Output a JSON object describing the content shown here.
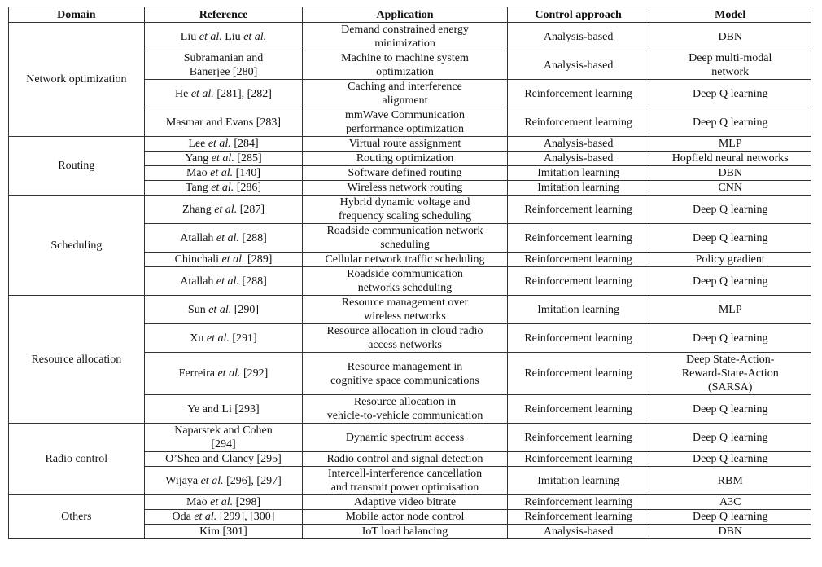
{
  "headers": [
    "Domain",
    "Reference",
    "Application",
    "Control approach",
    "Model"
  ],
  "groups": [
    {
      "domain": "Network optimization",
      "rows": [
        {
          "ref": [
            {
              "t": "Liu "
            },
            {
              "t": "et al.",
              "i": true
            },
            {
              "t": " Liu "
            },
            {
              "t": "et al.",
              "i": true
            }
          ],
          "app": [
            "Demand constrained energy",
            "minimization"
          ],
          "ctrl": "Analysis-based",
          "model": [
            "DBN"
          ],
          "h": 2
        },
        {
          "ref": [
            {
              "t": "Subramanian and"
            },
            {
              "br": true
            },
            {
              "t": "Banerjee [280]"
            }
          ],
          "app": [
            "Machine to machine system",
            "optimization"
          ],
          "ctrl": "Analysis-based",
          "model": [
            "Deep multi-modal",
            "network"
          ],
          "h": 2
        },
        {
          "ref": [
            {
              "t": "He "
            },
            {
              "t": "et al.",
              "i": true
            },
            {
              "t": " [281], [282]"
            }
          ],
          "app": [
            "Caching and interference",
            "alignment"
          ],
          "ctrl": "Reinforcement learning",
          "model": [
            "Deep Q learning"
          ],
          "h": 2
        },
        {
          "ref": [
            {
              "t": "Masmar and Evans [283]"
            }
          ],
          "app": [
            "mmWave Communication",
            "performance optimization"
          ],
          "ctrl": "Reinforcement learning",
          "model": [
            "Deep Q learning"
          ],
          "h": 2
        }
      ]
    },
    {
      "domain": "Routing",
      "rows": [
        {
          "ref": [
            {
              "t": "Lee "
            },
            {
              "t": "et al.",
              "i": true
            },
            {
              "t": " [284]"
            }
          ],
          "app": [
            "Virtual route assignment"
          ],
          "ctrl": "Analysis-based",
          "model": [
            "MLP"
          ],
          "h": 1
        },
        {
          "ref": [
            {
              "t": "Yang "
            },
            {
              "t": "et al.",
              "i": true
            },
            {
              "t": " [285]"
            }
          ],
          "app": [
            "Routing optimization"
          ],
          "ctrl": "Analysis-based",
          "model": [
            "Hopfield neural networks"
          ],
          "h": 1
        },
        {
          "ref": [
            {
              "t": "Mao "
            },
            {
              "t": "et al.",
              "i": true
            },
            {
              "t": " [140]"
            }
          ],
          "app": [
            "Software defined routing"
          ],
          "ctrl": "Imitation learning",
          "model": [
            "DBN"
          ],
          "h": 1
        },
        {
          "ref": [
            {
              "t": "Tang "
            },
            {
              "t": "et al.",
              "i": true
            },
            {
              "t": " [286]"
            }
          ],
          "app": [
            "Wireless network routing"
          ],
          "ctrl": "Imitation learning",
          "model": [
            "CNN"
          ],
          "h": 1
        }
      ]
    },
    {
      "domain": "Scheduling",
      "rows": [
        {
          "ref": [
            {
              "t": "Zhang "
            },
            {
              "t": "et al.",
              "i": true
            },
            {
              "t": " [287]"
            }
          ],
          "app": [
            "Hybrid dynamic voltage and",
            "frequency scaling scheduling"
          ],
          "ctrl": "Reinforcement learning",
          "model": [
            "Deep Q learning"
          ],
          "h": 2
        },
        {
          "ref": [
            {
              "t": "Atallah "
            },
            {
              "t": "et al.",
              "i": true
            },
            {
              "t": " [288]"
            }
          ],
          "app": [
            "Roadside communication network",
            "scheduling"
          ],
          "ctrl": "Reinforcement learning",
          "model": [
            "Deep Q learning"
          ],
          "h": 2
        },
        {
          "ref": [
            {
              "t": "Chinchali "
            },
            {
              "t": "et al.",
              "i": true
            },
            {
              "t": " [289]"
            }
          ],
          "app": [
            "Cellular network traffic scheduling"
          ],
          "ctrl": "Reinforcement learning",
          "model": [
            "Policy gradient"
          ],
          "h": 1
        },
        {
          "ref": [
            {
              "t": "Atallah "
            },
            {
              "t": "et al.",
              "i": true
            },
            {
              "t": " [288]"
            }
          ],
          "app": [
            "Roadside communication",
            "networks scheduling"
          ],
          "ctrl": "Reinforcement learning",
          "model": [
            "Deep Q learning"
          ],
          "h": 2
        }
      ]
    },
    {
      "domain": "Resource allocation",
      "rows": [
        {
          "ref": [
            {
              "t": "Sun "
            },
            {
              "t": "et al.",
              "i": true
            },
            {
              "t": " [290]"
            }
          ],
          "app": [
            "Resource management over",
            "wireless networks"
          ],
          "ctrl": "Imitation learning",
          "model": [
            "MLP"
          ],
          "h": 2
        },
        {
          "ref": [
            {
              "t": "Xu "
            },
            {
              "t": "et al.",
              "i": true
            },
            {
              "t": " [291]"
            }
          ],
          "app": [
            "Resource allocation in cloud radio",
            "access networks"
          ],
          "ctrl": "Reinforcement learning",
          "model": [
            "Deep Q learning"
          ],
          "h": 2
        },
        {
          "ref": [
            {
              "t": "Ferreira "
            },
            {
              "t": "et al.",
              "i": true
            },
            {
              "t": " [292]"
            }
          ],
          "app": [
            "Resource management in",
            "cognitive space communications"
          ],
          "ctrl": "Reinforcement learning",
          "model": [
            "Deep State-Action-",
            "Reward-State-Action",
            "(SARSA)"
          ],
          "h": 3
        },
        {
          "ref": [
            {
              "t": "Ye and Li [293]"
            }
          ],
          "app": [
            "Resource allocation in",
            "vehicle-to-vehicle communication"
          ],
          "ctrl": "Reinforcement learning",
          "model": [
            "Deep Q learning"
          ],
          "h": 2
        }
      ]
    },
    {
      "domain": "Radio control",
      "rows": [
        {
          "ref": [
            {
              "t": "Naparstek and Cohen"
            },
            {
              "br": true
            },
            {
              "t": "[294]"
            }
          ],
          "app": [
            "Dynamic spectrum access"
          ],
          "ctrl": "Reinforcement learning",
          "model": [
            "Deep Q learning"
          ],
          "h": 2
        },
        {
          "ref": [
            {
              "t": "O’Shea and Clancy [295]"
            }
          ],
          "app": [
            "Radio control and signal detection"
          ],
          "ctrl": "Reinforcement learning",
          "model": [
            "Deep Q learning"
          ],
          "h": 1
        },
        {
          "ref": [
            {
              "t": "Wijaya "
            },
            {
              "t": "et al.",
              "i": true
            },
            {
              "t": " [296], [297]"
            }
          ],
          "app": [
            "Intercell-interference cancellation",
            "and transmit power optimisation"
          ],
          "ctrl": "Imitation learning",
          "model": [
            "RBM"
          ],
          "h": 2
        }
      ]
    },
    {
      "domain": "Others",
      "rows": [
        {
          "ref": [
            {
              "t": "Mao "
            },
            {
              "t": "et al.",
              "i": true
            },
            {
              "t": " [298]"
            }
          ],
          "app": [
            "Adaptive video bitrate"
          ],
          "ctrl": "Reinforcement learning",
          "model": [
            "A3C"
          ],
          "h": 1
        },
        {
          "ref": [
            {
              "t": "Oda "
            },
            {
              "t": "et al.",
              "i": true
            },
            {
              "t": " [299], [300]"
            }
          ],
          "app": [
            "Mobile actor node control"
          ],
          "ctrl": "Reinforcement learning",
          "model": [
            "Deep Q learning"
          ],
          "h": 1
        },
        {
          "ref": [
            {
              "t": "Kim [301]"
            }
          ],
          "app": [
            "IoT load balancing"
          ],
          "ctrl": "Analysis-based",
          "model": [
            "DBN"
          ],
          "h": 1
        }
      ]
    }
  ]
}
